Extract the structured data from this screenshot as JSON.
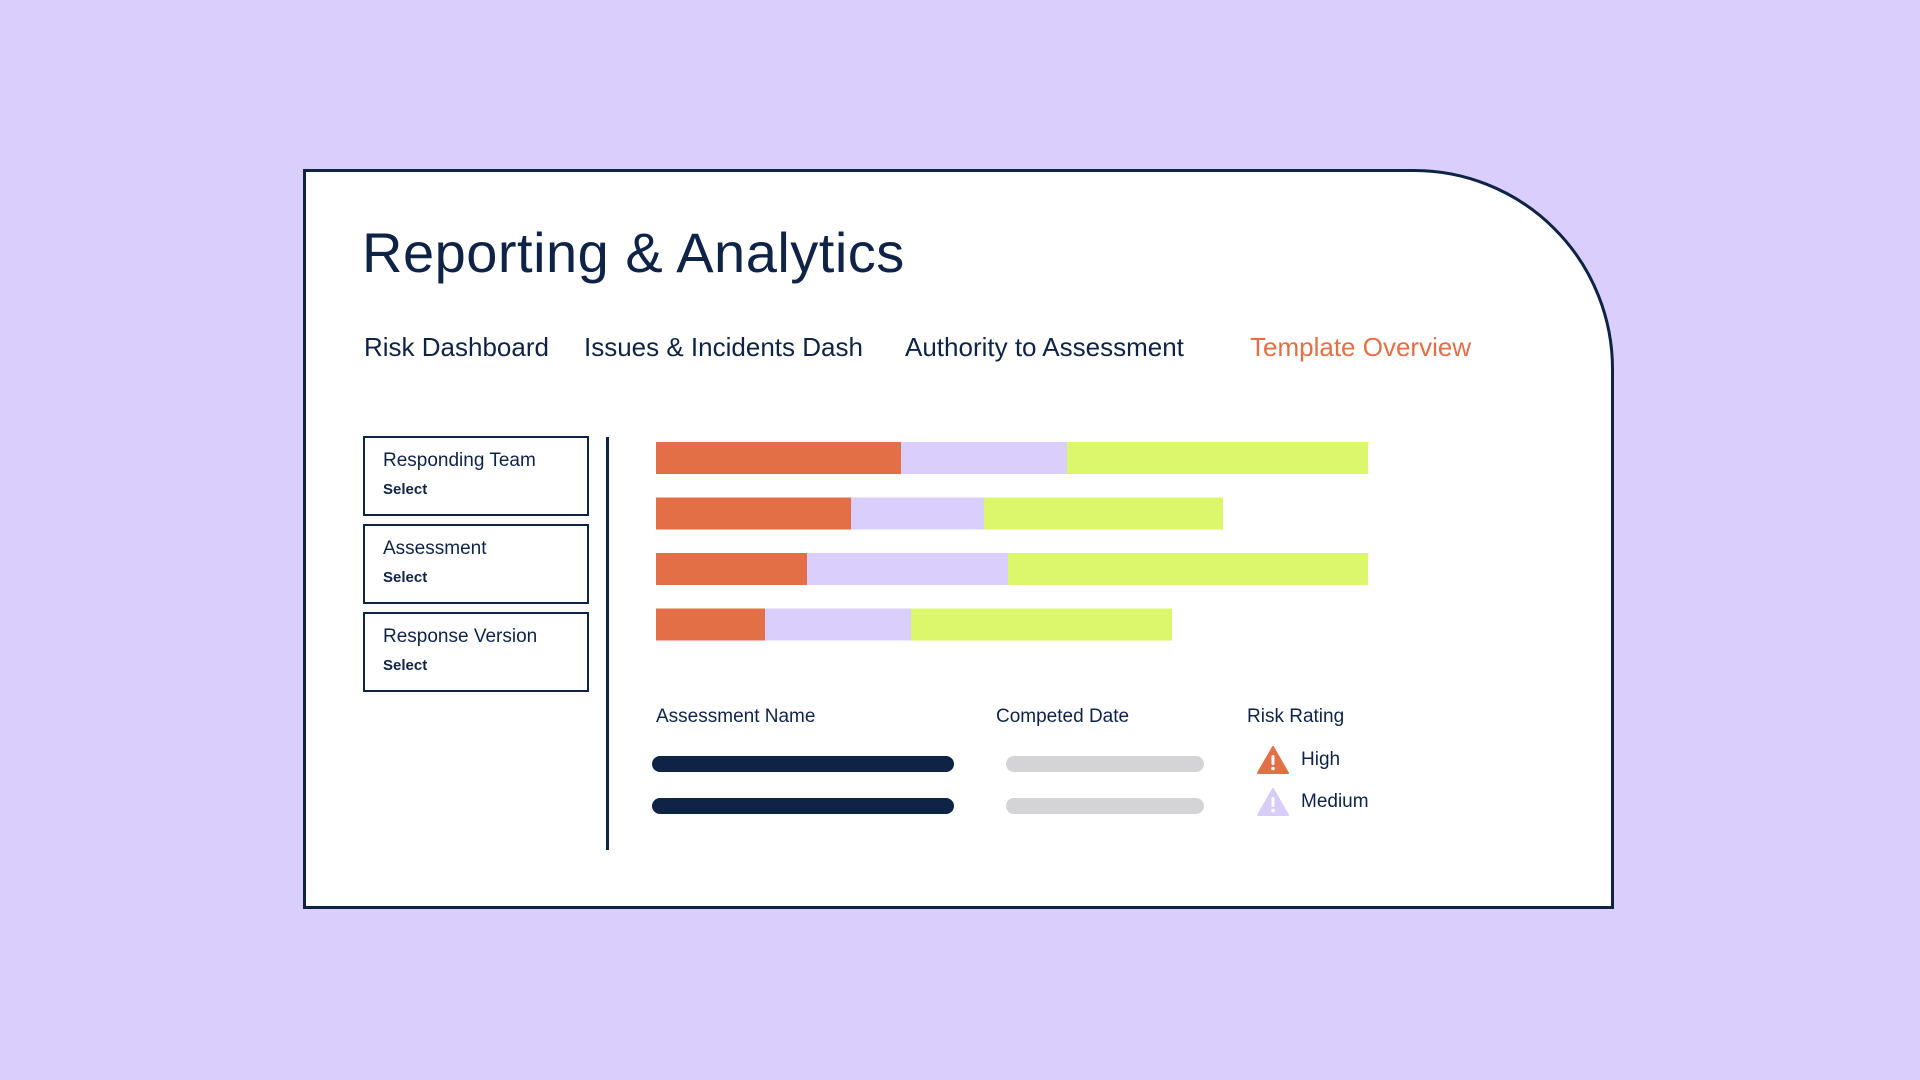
{
  "app": {
    "title": "Reporting & Analytics"
  },
  "tabs": [
    {
      "label": "Risk Dashboard",
      "active": false
    },
    {
      "label": "Issues & Incidents Dash",
      "active": false
    },
    {
      "label": "Authority to Assessment",
      "active": false
    },
    {
      "label": "Template Overview",
      "active": true
    }
  ],
  "filters": [
    {
      "label": "Responding Team",
      "value": "Select"
    },
    {
      "label": "Assessment",
      "value": "Select"
    },
    {
      "label": "Response Version",
      "value": "Select"
    }
  ],
  "colors": {
    "background": "#dacefc",
    "ink": "#0f2346",
    "accent": "#e36f47",
    "segment_1": "#e36f47",
    "segment_2": "#dacefc",
    "segment_3": "#dcf76b",
    "date_placeholder": "#d4d4d6",
    "medium_warning": "#d8cdf8"
  },
  "chart_data": {
    "type": "bar",
    "orientation": "horizontal",
    "stacked": true,
    "title": "",
    "categories": [
      "",
      "",
      "",
      ""
    ],
    "series": [
      {
        "values": [
          245,
          195,
          151,
          109
        ]
      },
      {
        "values": [
          166,
          133,
          201,
          146
        ]
      },
      {
        "values": [
          301,
          239,
          360,
          261
        ]
      }
    ],
    "xlim": [
      0,
      712
    ],
    "grid": false
  },
  "table": {
    "headers": {
      "name": "Assessment Name",
      "date": "Competed Date",
      "rating": "Risk Rating"
    },
    "rows": [
      {
        "rating": "High",
        "rating_icon": "warning-triangle-icon"
      },
      {
        "rating": "Medium",
        "rating_icon": "warning-triangle-icon"
      }
    ]
  }
}
